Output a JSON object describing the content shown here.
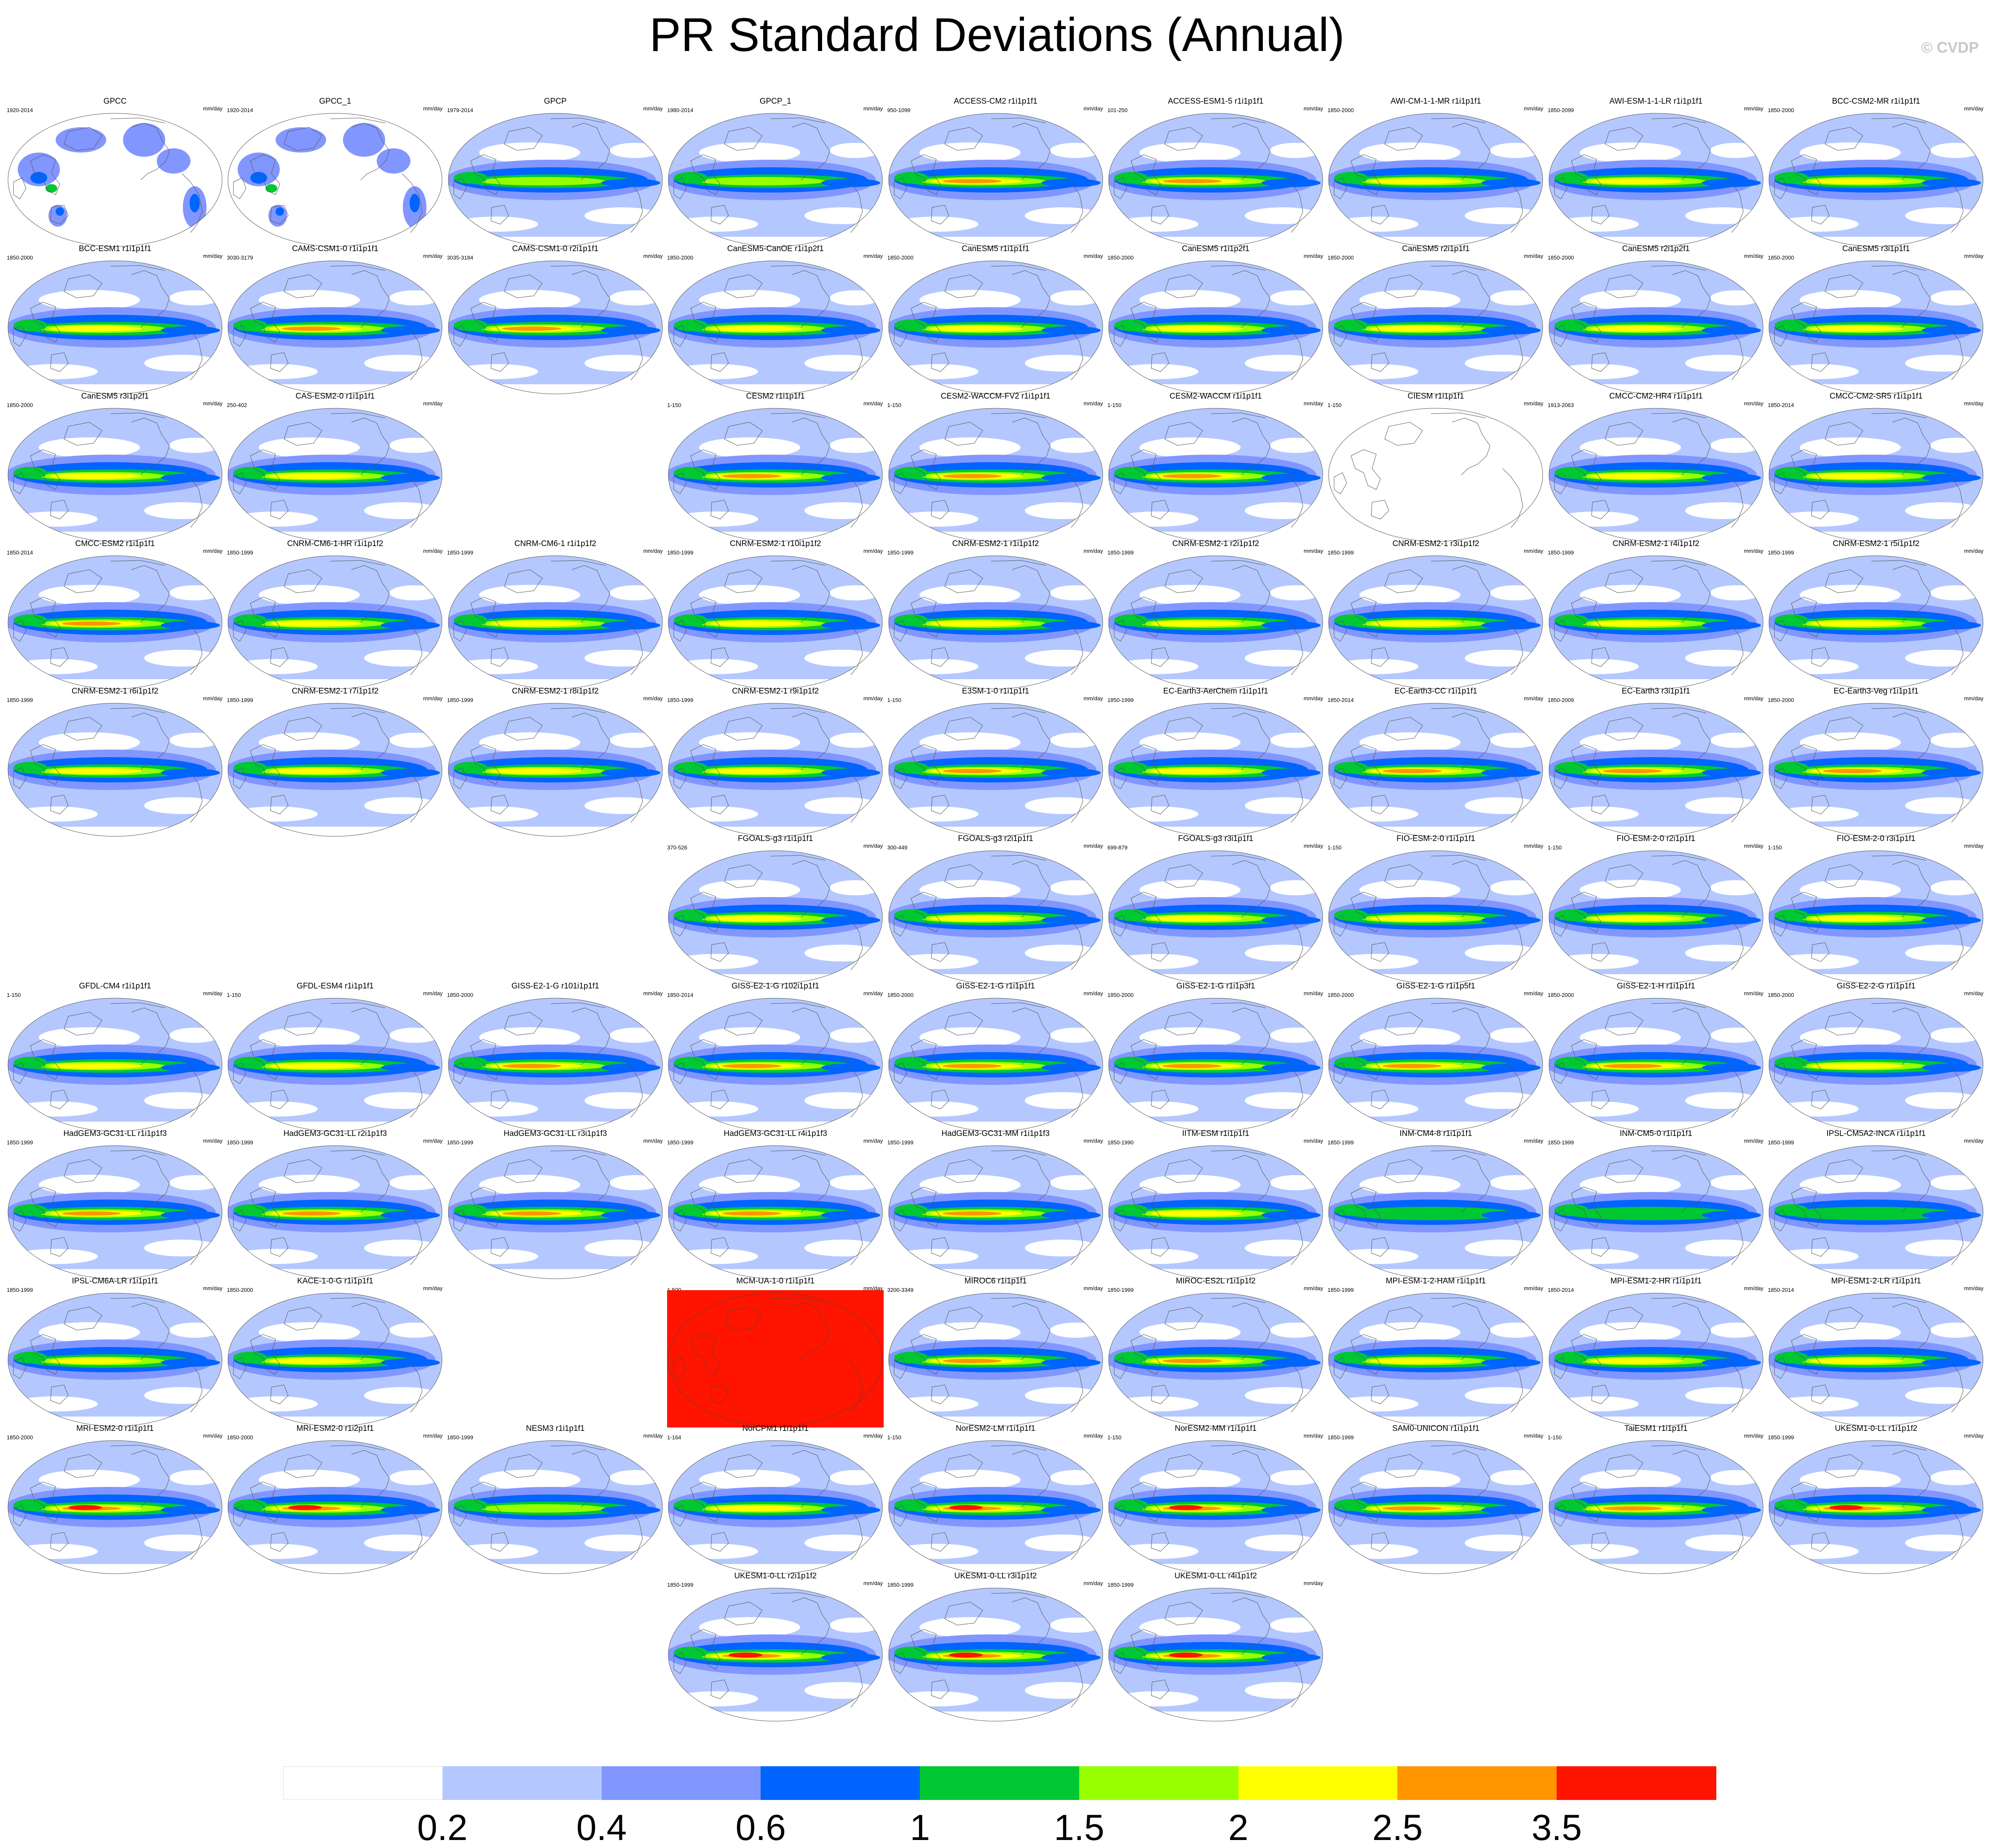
{
  "title": "PR Standard Deviations (Annual)",
  "copyright": "© CVDP",
  "units": "mm/day",
  "chart_data": {
    "type": "heatmap",
    "title": "PR Standard Deviations (Annual)",
    "colorbar": {
      "labels": [
        "0.2",
        "0.4",
        "0.6",
        "1",
        "1.5",
        "2",
        "2.5",
        "3.5"
      ],
      "colors": [
        "#ffffff",
        "#b4c8ff",
        "#8296ff",
        "#0064ff",
        "#00c832",
        "#96ff00",
        "#ffff00",
        "#ff9600",
        "#ff1400"
      ]
    },
    "panels": [
      {
        "title": "GPCC",
        "years": "1920-2014",
        "units": "mm/day",
        "row": 0,
        "col": 0,
        "style": "land"
      },
      {
        "title": "GPCC_1",
        "years": "1920-2014",
        "units": "mm/day",
        "row": 0,
        "col": 1,
        "style": "land"
      },
      {
        "title": "GPCP",
        "years": "1979-2014",
        "units": "mm/day",
        "row": 0,
        "col": 2,
        "style": "obs"
      },
      {
        "title": "GPCP_1",
        "years": "1980-2014",
        "units": "mm/day",
        "row": 0,
        "col": 3,
        "style": "obs"
      },
      {
        "title": "ACCESS-CM2 r1i1p1f1",
        "years": "950-1099",
        "units": "mm/day",
        "row": 0,
        "col": 4,
        "style": "strong"
      },
      {
        "title": "ACCESS-ESM1-5 r1i1p1f1",
        "years": "101-250",
        "units": "mm/day",
        "row": 0,
        "col": 5,
        "style": "strong"
      },
      {
        "title": "AWI-CM-1-1-MR r1i1p1f1",
        "years": "1850-2000",
        "units": "mm/day",
        "row": 0,
        "col": 6,
        "style": "model"
      },
      {
        "title": "AWI-ESM-1-1-LR r1i1p1f1",
        "years": "1850-2099",
        "units": "mm/day",
        "row": 0,
        "col": 7,
        "style": "model"
      },
      {
        "title": "BCC-CSM2-MR r1i1p1f1",
        "years": "1850-2000",
        "units": "mm/day",
        "row": 0,
        "col": 8,
        "style": "model"
      },
      {
        "title": "BCC-ESM1 r1i1p1f1",
        "years": "1850-2000",
        "units": "mm/day",
        "row": 1,
        "col": 0,
        "style": "model"
      },
      {
        "title": "CAMS-CSM1-0 r1i1p1f1",
        "years": "3030-3179",
        "units": "mm/day",
        "row": 1,
        "col": 1,
        "style": "strong"
      },
      {
        "title": "CAMS-CSM1-0 r2i1p1f1",
        "years": "3035-3184",
        "units": "mm/day",
        "row": 1,
        "col": 2,
        "style": "strong"
      },
      {
        "title": "CanESM5-CanOE r1i1p2f1",
        "years": "1850-2000",
        "units": "mm/day",
        "row": 1,
        "col": 3,
        "style": "model"
      },
      {
        "title": "CanESM5 r1i1p1f1",
        "years": "1850-2000",
        "units": "mm/day",
        "row": 1,
        "col": 4,
        "style": "model"
      },
      {
        "title": "CanESM5 r1i1p2f1",
        "years": "1850-2000",
        "units": "mm/day",
        "row": 1,
        "col": 5,
        "style": "model"
      },
      {
        "title": "CanESM5 r2i1p1f1",
        "years": "1850-2000",
        "units": "mm/day",
        "row": 1,
        "col": 6,
        "style": "model"
      },
      {
        "title": "CanESM5 r2i1p2f1",
        "years": "1850-2000",
        "units": "mm/day",
        "row": 1,
        "col": 7,
        "style": "model"
      },
      {
        "title": "CanESM5 r3i1p1f1",
        "years": "1850-2000",
        "units": "mm/day",
        "row": 1,
        "col": 8,
        "style": "model"
      },
      {
        "title": "CanESM5 r3i1p2f1",
        "years": "1850-2000",
        "units": "mm/day",
        "row": 2,
        "col": 0,
        "style": "model"
      },
      {
        "title": "CAS-ESM2-0 r1i1p1f1",
        "years": "250-402",
        "units": "mm/day",
        "row": 2,
        "col": 1,
        "style": "model"
      },
      {
        "title": "CESM2 r1i1p1f1",
        "years": "1-150",
        "units": "mm/day",
        "row": 2,
        "col": 3,
        "style": "strong"
      },
      {
        "title": "CESM2-WACCM-FV2 r1i1p1f1",
        "years": "1-150",
        "units": "mm/day",
        "row": 2,
        "col": 4,
        "style": "strong"
      },
      {
        "title": "CESM2-WACCM r1i1p1f1",
        "years": "1-150",
        "units": "mm/day",
        "row": 2,
        "col": 5,
        "style": "strong"
      },
      {
        "title": "CIESM r1i1p1f1",
        "years": "1-150",
        "units": "mm/day",
        "row": 2,
        "col": 6,
        "style": "empty"
      },
      {
        "title": "CMCC-CM2-HR4 r1i1p1f1",
        "years": "1913-2063",
        "units": "mm/day",
        "row": 2,
        "col": 7,
        "style": "model"
      },
      {
        "title": "CMCC-CM2-SR5 r1i1p1f1",
        "years": "1850-2014",
        "units": "mm/day",
        "row": 2,
        "col": 8,
        "style": "model"
      },
      {
        "title": "CMCC-ESM2 r1i1p1f1",
        "years": "1850-2014",
        "units": "mm/day",
        "row": 3,
        "col": 0,
        "style": "strong"
      },
      {
        "title": "CNRM-CM6-1-HR r1i1p1f2",
        "years": "1850-1999",
        "units": "mm/day",
        "row": 3,
        "col": 1,
        "style": "model"
      },
      {
        "title": "CNRM-CM6-1 r1i1p1f2",
        "years": "1850-1999",
        "units": "mm/day",
        "row": 3,
        "col": 2,
        "style": "model"
      },
      {
        "title": "CNRM-ESM2-1 r10i1p1f2",
        "years": "1850-1999",
        "units": "mm/day",
        "row": 3,
        "col": 3,
        "style": "model"
      },
      {
        "title": "CNRM-ESM2-1 r1i1p1f2",
        "years": "1850-1999",
        "units": "mm/day",
        "row": 3,
        "col": 4,
        "style": "model"
      },
      {
        "title": "CNRM-ESM2-1 r2i1p1f2",
        "years": "1850-1999",
        "units": "mm/day",
        "row": 3,
        "col": 5,
        "style": "model"
      },
      {
        "title": "CNRM-ESM2-1 r3i1p1f2",
        "years": "1850-1999",
        "units": "mm/day",
        "row": 3,
        "col": 6,
        "style": "model"
      },
      {
        "title": "CNRM-ESM2-1 r4i1p1f2",
        "years": "1850-1999",
        "units": "mm/day",
        "row": 3,
        "col": 7,
        "style": "model"
      },
      {
        "title": "CNRM-ESM2-1 r5i1p1f2",
        "years": "1850-1999",
        "units": "mm/day",
        "row": 3,
        "col": 8,
        "style": "model"
      },
      {
        "title": "CNRM-ESM2-1 r6i1p1f2",
        "years": "1850-1999",
        "units": "mm/day",
        "row": 4,
        "col": 0,
        "style": "model"
      },
      {
        "title": "CNRM-ESM2-1 r7i1p1f2",
        "years": "1850-1999",
        "units": "mm/day",
        "row": 4,
        "col": 1,
        "style": "model"
      },
      {
        "title": "CNRM-ESM2-1 r8i1p1f2",
        "years": "1850-1999",
        "units": "mm/day",
        "row": 4,
        "col": 2,
        "style": "model"
      },
      {
        "title": "CNRM-ESM2-1 r9i1p1f2",
        "years": "1850-1999",
        "units": "mm/day",
        "row": 4,
        "col": 3,
        "style": "model"
      },
      {
        "title": "E3SM-1-0 r1i1p1f1",
        "years": "1-150",
        "units": "mm/day",
        "row": 4,
        "col": 4,
        "style": "strong"
      },
      {
        "title": "EC-Earth3-AerChem r1i1p1f1",
        "years": "1850-1999",
        "units": "mm/day",
        "row": 4,
        "col": 5,
        "style": "model"
      },
      {
        "title": "EC-Earth3-CC r1i1p1f1",
        "years": "1850-2014",
        "units": "mm/day",
        "row": 4,
        "col": 6,
        "style": "strong"
      },
      {
        "title": "EC-Earth3 r3i1p1f1",
        "years": "1850-2009",
        "units": "mm/day",
        "row": 4,
        "col": 7,
        "style": "strong"
      },
      {
        "title": "EC-Earth3-Veg r1i1p1f1",
        "years": "1850-2000",
        "units": "mm/day",
        "row": 4,
        "col": 8,
        "style": "strong"
      },
      {
        "title": "FGOALS-g3 r1i1p1f1",
        "years": "370-526",
        "units": "mm/day",
        "row": 5,
        "col": 3,
        "style": "model"
      },
      {
        "title": "FGOALS-g3 r2i1p1f1",
        "years": "300-449",
        "units": "mm/day",
        "row": 5,
        "col": 4,
        "style": "model"
      },
      {
        "title": "FGOALS-g3 r3i1p1f1",
        "years": "699-879",
        "units": "mm/day",
        "row": 5,
        "col": 5,
        "style": "model"
      },
      {
        "title": "FIO-ESM-2-0 r1i1p1f1",
        "years": "1-150",
        "units": "mm/day",
        "row": 5,
        "col": 6,
        "style": "model"
      },
      {
        "title": "FIO-ESM-2-0 r2i1p1f1",
        "years": "1-150",
        "units": "mm/day",
        "row": 5,
        "col": 7,
        "style": "model"
      },
      {
        "title": "FIO-ESM-2-0 r3i1p1f1",
        "years": "1-150",
        "units": "mm/day",
        "row": 5,
        "col": 8,
        "style": "model"
      },
      {
        "title": "GFDL-CM4 r1i1p1f1",
        "years": "1-150",
        "units": "mm/day",
        "row": 6,
        "col": 0,
        "style": "model"
      },
      {
        "title": "GFDL-ESM4 r1i1p1f1",
        "years": "1-150",
        "units": "mm/day",
        "row": 6,
        "col": 1,
        "style": "model"
      },
      {
        "title": "GISS-E2-1-G r101i1p1f1",
        "years": "1850-2000",
        "units": "mm/day",
        "row": 6,
        "col": 2,
        "style": "strong"
      },
      {
        "title": "GISS-E2-1-G r102i1p1f1",
        "years": "1850-2014",
        "units": "mm/day",
        "row": 6,
        "col": 3,
        "style": "strong"
      },
      {
        "title": "GISS-E2-1-G r1i1p1f1",
        "years": "1850-2000",
        "units": "mm/day",
        "row": 6,
        "col": 4,
        "style": "strong"
      },
      {
        "title": "GISS-E2-1-G r1i1p3f1",
        "years": "1850-2000",
        "units": "mm/day",
        "row": 6,
        "col": 5,
        "style": "strong"
      },
      {
        "title": "GISS-E2-1-G r1i1p5f1",
        "years": "1850-2000",
        "units": "mm/day",
        "row": 6,
        "col": 6,
        "style": "strong"
      },
      {
        "title": "GISS-E2-1-H r1i1p1f1",
        "years": "1850-2000",
        "units": "mm/day",
        "row": 6,
        "col": 7,
        "style": "strong"
      },
      {
        "title": "GISS-E2-2-G r1i1p1f1",
        "years": "1850-2000",
        "units": "mm/day",
        "row": 6,
        "col": 8,
        "style": "model"
      },
      {
        "title": "HadGEM3-GC31-LL r1i1p1f3",
        "years": "1850-1999",
        "units": "mm/day",
        "row": 7,
        "col": 0,
        "style": "strong"
      },
      {
        "title": "HadGEM3-GC31-LL r2i1p1f3",
        "years": "1850-1999",
        "units": "mm/day",
        "row": 7,
        "col": 1,
        "style": "strong"
      },
      {
        "title": "HadGEM3-GC31-LL r3i1p1f3",
        "years": "1850-1999",
        "units": "mm/day",
        "row": 7,
        "col": 2,
        "style": "strong"
      },
      {
        "title": "HadGEM3-GC31-LL r4i1p1f3",
        "years": "1850-1999",
        "units": "mm/day",
        "row": 7,
        "col": 3,
        "style": "strong"
      },
      {
        "title": "HadGEM3-GC31-MM r1i1p1f3",
        "years": "1850-1999",
        "units": "mm/day",
        "row": 7,
        "col": 4,
        "style": "strong"
      },
      {
        "title": "IITM-ESM r1i1p1f1",
        "years": "1850-1990",
        "units": "mm/day",
        "row": 7,
        "col": 5,
        "style": "model"
      },
      {
        "title": "INM-CM4-8 r1i1p1f1",
        "years": "1850-1999",
        "units": "mm/day",
        "row": 7,
        "col": 6,
        "style": "weak"
      },
      {
        "title": "INM-CM5-0 r1i1p1f1",
        "years": "1850-1999",
        "units": "mm/day",
        "row": 7,
        "col": 7,
        "style": "weak"
      },
      {
        "title": "IPSL-CM5A2-INCA r1i1p1f1",
        "years": "1850-1999",
        "units": "mm/day",
        "row": 7,
        "col": 8,
        "style": "weak"
      },
      {
        "title": "IPSL-CM6A-LR r1i1p1f1",
        "years": "1850-1999",
        "units": "mm/day",
        "row": 8,
        "col": 0,
        "style": "model"
      },
      {
        "title": "KACE-1-0-G r1i1p1f1",
        "years": "1850-2000",
        "units": "mm/day",
        "row": 8,
        "col": 1,
        "style": "model"
      },
      {
        "title": "MCM-UA-1-0 r1i1p1f1",
        "years": "1-500",
        "units": "mm/day",
        "row": 8,
        "col": 3,
        "style": "red"
      },
      {
        "title": "MIROC6 r1i1p1f1",
        "years": "3200-3349",
        "units": "mm/day",
        "row": 8,
        "col": 4,
        "style": "strong"
      },
      {
        "title": "MIROC-ES2L r1i1p1f2",
        "years": "1850-1999",
        "units": "mm/day",
        "row": 8,
        "col": 5,
        "style": "strong"
      },
      {
        "title": "MPI-ESM-1-2-HAM r1i1p1f1",
        "years": "1850-1999",
        "units": "mm/day",
        "row": 8,
        "col": 6,
        "style": "model"
      },
      {
        "title": "MPI-ESM1-2-HR r1i1p1f1",
        "years": "1850-2014",
        "units": "mm/day",
        "row": 8,
        "col": 7,
        "style": "model"
      },
      {
        "title": "MPI-ESM1-2-LR r1i1p1f1",
        "years": "1850-2014",
        "units": "mm/day",
        "row": 8,
        "col": 8,
        "style": "model"
      },
      {
        "title": "MRI-ESM2-0 r1i1p1f1",
        "years": "1850-2000",
        "units": "mm/day",
        "row": 9,
        "col": 0,
        "style": "hot"
      },
      {
        "title": "MRI-ESM2-0 r1i2p1f1",
        "years": "1850-2000",
        "units": "mm/day",
        "row": 9,
        "col": 1,
        "style": "hot"
      },
      {
        "title": "NESM3 r1i1p1f1",
        "years": "1850-1999",
        "units": "mm/day",
        "row": 9,
        "col": 2,
        "style": "obs"
      },
      {
        "title": "NorCPM1 r1i1p1f1",
        "years": "1-164",
        "units": "mm/day",
        "row": 9,
        "col": 3,
        "style": "model"
      },
      {
        "title": "NorESM2-LM r1i1p1f1",
        "years": "1-150",
        "units": "mm/day",
        "row": 9,
        "col": 4,
        "style": "hot"
      },
      {
        "title": "NorESM2-MM r1i1p1f1",
        "years": "1-150",
        "units": "mm/day",
        "row": 9,
        "col": 5,
        "style": "hot"
      },
      {
        "title": "SAM0-UNICON r1i1p1f1",
        "years": "1850-1999",
        "units": "mm/day",
        "row": 9,
        "col": 6,
        "style": "strong"
      },
      {
        "title": "TaiESM1 r1i1p1f1",
        "years": "1-150",
        "units": "mm/day",
        "row": 9,
        "col": 7,
        "style": "strong"
      },
      {
        "title": "UKESM1-0-LL r1i1p1f2",
        "years": "1850-1999",
        "units": "mm/day",
        "row": 9,
        "col": 8,
        "style": "hot"
      },
      {
        "title": "UKESM1-0-LL r2i1p1f2",
        "years": "1850-1999",
        "units": "mm/day",
        "row": 10,
        "col": 3,
        "style": "hot"
      },
      {
        "title": "UKESM1-0-LL r3i1p1f2",
        "years": "1850-1999",
        "units": "mm/day",
        "row": 10,
        "col": 4,
        "style": "hot"
      },
      {
        "title": "UKESM1-0-LL r4i1p1f2",
        "years": "1850-1999",
        "units": "mm/day",
        "row": 10,
        "col": 5,
        "style": "hot"
      }
    ]
  }
}
